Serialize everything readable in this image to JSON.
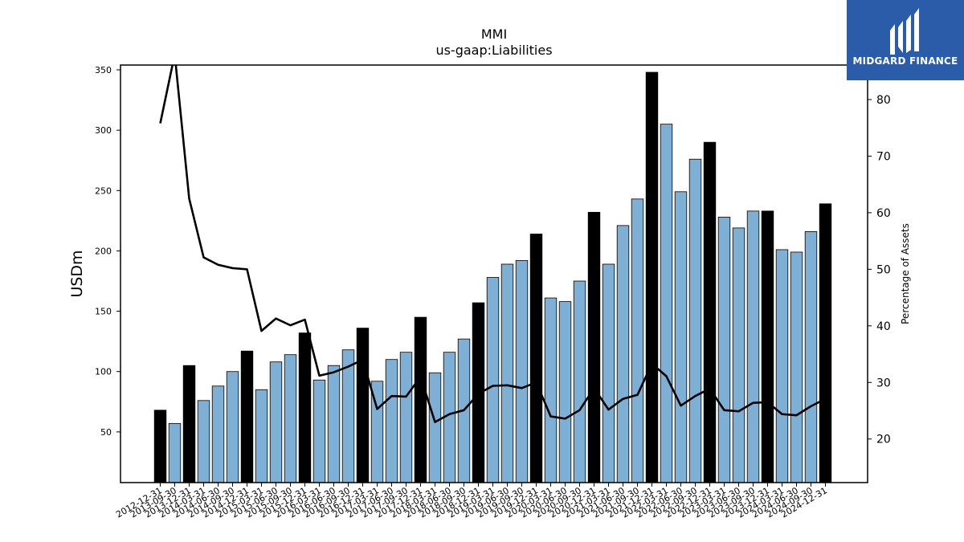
{
  "chart_data": {
    "type": "bar",
    "title": "MMI",
    "subtitle": "us-gaap:Liabilities",
    "ylabel": "USDm",
    "y2label": "Percentage of Assets",
    "ylim": [
      8,
      354
    ],
    "y2lim": [
      12.3,
      86.1
    ],
    "yticks": [
      50,
      100,
      150,
      200,
      250,
      300,
      350
    ],
    "y2ticks": [
      20,
      30,
      40,
      50,
      60,
      70,
      80
    ],
    "categories": [
      "2012-12-31",
      "2013-09-30",
      "2013-12-31",
      "2014-03-31",
      "2014-06-30",
      "2014-09-30",
      "2014-12-31",
      "2015-03-31",
      "2015-06-30",
      "2015-09-30",
      "2015-12-31",
      "2016-03-31",
      "2016-06-30",
      "2016-09-30",
      "2016-12-31",
      "2017-03-31",
      "2017-06-30",
      "2017-09-30",
      "2017-12-31",
      "2018-03-31",
      "2018-06-30",
      "2018-09-30",
      "2018-12-31",
      "2019-03-31",
      "2019-06-30",
      "2019-09-30",
      "2019-12-31",
      "2020-03-31",
      "2020-06-30",
      "2020-09-30",
      "2020-12-31",
      "2021-03-31",
      "2021-06-30",
      "2021-09-30",
      "2021-12-31",
      "2022-03-31",
      "2022-06-30",
      "2022-09-30",
      "2022-12-31",
      "2023-03-31",
      "2023-06-30",
      "2023-09-30",
      "2023-12-31",
      "2024-03-31",
      "2024-06-30",
      "2024-09-30",
      "2024-12-31"
    ],
    "series": [
      {
        "type": "bar",
        "axis": "left",
        "values": [
          68,
          57,
          105,
          76,
          88,
          100,
          117,
          85,
          108,
          114,
          132,
          93,
          105,
          118,
          136,
          92,
          110,
          116,
          145,
          99,
          116,
          127,
          157,
          178,
          189,
          192,
          214,
          161,
          158,
          175,
          232,
          189,
          221,
          243,
          348,
          305,
          249,
          276,
          290,
          228,
          219,
          233,
          233,
          201,
          199,
          216,
          239
        ],
        "highlight": [
          true,
          false,
          true,
          false,
          false,
          false,
          true,
          false,
          false,
          false,
          true,
          false,
          false,
          false,
          true,
          false,
          false,
          false,
          true,
          false,
          false,
          false,
          true,
          false,
          false,
          false,
          true,
          false,
          false,
          false,
          true,
          false,
          false,
          false,
          true,
          false,
          false,
          false,
          true,
          false,
          false,
          false,
          true,
          false,
          false,
          false,
          true
        ]
      },
      {
        "type": "line",
        "axis": "right",
        "values": [
          75.8,
          88.0,
          62.5,
          52.1,
          50.8,
          50.2,
          50.0,
          39.1,
          41.3,
          40.1,
          41.1,
          31.2,
          31.8,
          32.8,
          34.0,
          25.3,
          27.6,
          27.5,
          31.0,
          23.0,
          24.4,
          25.1,
          28.0,
          29.4,
          29.5,
          29.0,
          30.0,
          24.0,
          23.6,
          25.1,
          29.0,
          25.2,
          27.1,
          27.8,
          33.3,
          31.1,
          25.9,
          27.6,
          28.9,
          25.1,
          24.9,
          26.4,
          26.5,
          24.4,
          24.2,
          25.8,
          27.1
        ]
      }
    ],
    "colors": {
      "bar": "#7eb0d5",
      "highlight": "#000000",
      "line": "#000000",
      "edge": "#000000"
    },
    "grid": false,
    "legend": "none"
  },
  "logo": {
    "text": "MIDGARD FINANCE",
    "bg": "#2a5caa"
  }
}
